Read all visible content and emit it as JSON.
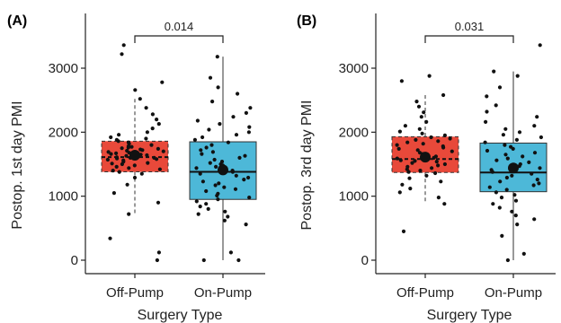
{
  "chart_data": [
    {
      "type": "boxplot",
      "panel_label": "(A)",
      "xlabel": "Surgery Type",
      "ylabel": "Postop. 1st day PMI",
      "categories": [
        "Off-Pump",
        "On-Pump"
      ],
      "ylim": [
        0,
        3500
      ],
      "yticks": [
        0,
        1000,
        2000,
        3000
      ],
      "grid": false,
      "comparison": {
        "label": "0.014",
        "between": [
          "Off-Pump",
          "On-Pump"
        ]
      },
      "groups": [
        {
          "name": "Off-Pump",
          "color": "#e8493a",
          "line_style": "dashed",
          "whisker_low": 720,
          "q1": 1380,
          "median": 1610,
          "q3": 1860,
          "whisker_high": 2520,
          "mean": 1640,
          "points": [
            0,
            120,
            340,
            720,
            900,
            1050,
            1180,
            1290,
            1350,
            1380,
            1400,
            1420,
            1440,
            1460,
            1480,
            1500,
            1510,
            1520,
            1540,
            1560,
            1570,
            1580,
            1590,
            1600,
            1600,
            1610,
            1620,
            1630,
            1640,
            1650,
            1660,
            1670,
            1680,
            1690,
            1700,
            1710,
            1720,
            1730,
            1740,
            1750,
            1760,
            1770,
            1780,
            1800,
            1820,
            1840,
            1860,
            1880,
            1900,
            1920,
            1960,
            2000,
            2060,
            2130,
            2200,
            2280,
            2380,
            2520,
            2660,
            2780,
            3220,
            3360
          ]
        },
        {
          "name": "On-Pump",
          "color": "#4db8d8",
          "line_style": "solid",
          "whisker_low": 0,
          "q1": 950,
          "median": 1380,
          "q3": 1850,
          "whisker_high": 3180,
          "mean": 1410,
          "points": [
            0,
            0,
            120,
            560,
            620,
            680,
            720,
            760,
            800,
            840,
            880,
            920,
            950,
            980,
            1010,
            1040,
            1080,
            1110,
            1140,
            1170,
            1200,
            1230,
            1260,
            1290,
            1320,
            1350,
            1380,
            1400,
            1420,
            1440,
            1460,
            1480,
            1500,
            1520,
            1540,
            1570,
            1600,
            1630,
            1660,
            1690,
            1720,
            1760,
            1800,
            1840,
            1880,
            1920,
            1960,
            2000,
            2040,
            2080,
            2130,
            2180,
            2240,
            2300,
            2380,
            2480,
            2600,
            2700,
            2850,
            3180
          ]
        }
      ]
    },
    {
      "type": "boxplot",
      "panel_label": "(B)",
      "xlabel": "Surgery Type",
      "ylabel": "Postop. 3rd day PMI",
      "categories": [
        "Off-Pump",
        "On-Pump"
      ],
      "ylim": [
        0,
        3500
      ],
      "yticks": [
        0,
        1000,
        2000,
        3000
      ],
      "grid": false,
      "comparison": {
        "label": "0.031",
        "between": [
          "Off-Pump",
          "On-Pump"
        ]
      },
      "groups": [
        {
          "name": "Off-Pump",
          "color": "#e8493a",
          "line_style": "dashed",
          "whisker_low": 880,
          "q1": 1370,
          "median": 1580,
          "q3": 1930,
          "whisker_high": 2580,
          "mean": 1610,
          "points": [
            450,
            880,
            980,
            1060,
            1120,
            1180,
            1230,
            1280,
            1320,
            1360,
            1380,
            1400,
            1420,
            1440,
            1460,
            1480,
            1500,
            1520,
            1540,
            1550,
            1560,
            1570,
            1580,
            1590,
            1600,
            1620,
            1640,
            1660,
            1680,
            1700,
            1720,
            1740,
            1760,
            1780,
            1800,
            1820,
            1840,
            1860,
            1880,
            1900,
            1920,
            1950,
            1980,
            2010,
            2050,
            2100,
            2160,
            2240,
            2310,
            2400,
            2480,
            2580,
            2800,
            2880
          ]
        },
        {
          "name": "On-Pump",
          "color": "#4db8d8",
          "line_style": "solid",
          "whisker_low": 0,
          "q1": 1070,
          "median": 1370,
          "q3": 1830,
          "whisker_high": 2950,
          "mean": 1440,
          "points": [
            0,
            100,
            380,
            560,
            640,
            700,
            760,
            820,
            880,
            930,
            980,
            1020,
            1060,
            1100,
            1140,
            1170,
            1200,
            1230,
            1260,
            1290,
            1320,
            1350,
            1380,
            1410,
            1440,
            1470,
            1500,
            1530,
            1560,
            1590,
            1620,
            1650,
            1680,
            1710,
            1740,
            1770,
            1800,
            1840,
            1880,
            1920,
            1960,
            2000,
            2050,
            2100,
            2160,
            2240,
            2320,
            2420,
            2560,
            2700,
            2880,
            2950,
            3360
          ]
        }
      ]
    }
  ]
}
